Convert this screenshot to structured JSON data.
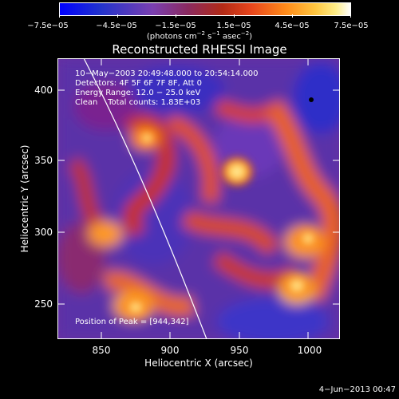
{
  "colorbar": {
    "ticks": [
      "−7.5e−05",
      "−4.5e−05",
      "−1.5e−05",
      "1.5e−05",
      "4.5e−05",
      "7.5e−05"
    ],
    "units_prefix": "(photons cm",
    "units_exp1": "−2",
    "units_mid": " s",
    "units_exp2": "−1",
    "units_mid2": " asec",
    "units_exp3": "−2",
    "units_suffix": ")"
  },
  "title": "Reconstructed RHESSI Image",
  "info": {
    "time": "10−May−2003 20:49:48.000 to 20:54:14.000",
    "detectors": "Detectors: 4F 5F 6F 7F 8F, Att 0",
    "energy": "Energy Range: 12.0 − 25.0 keV",
    "clean": "Clean    Total counts: 1.83E+03",
    "peak": "Position of Peak = [944,342]"
  },
  "axes": {
    "xlabel": "Heliocentric X (arcsec)",
    "ylabel": "Heliocentric Y (arcsec)",
    "xticks": [
      "850",
      "900",
      "950",
      "1000"
    ],
    "yticks": [
      "400",
      "350",
      "300",
      "250"
    ]
  },
  "footer": "4−Jun−2013 00:47",
  "colors": {
    "background": "#000000",
    "text": "#ffffff"
  }
}
